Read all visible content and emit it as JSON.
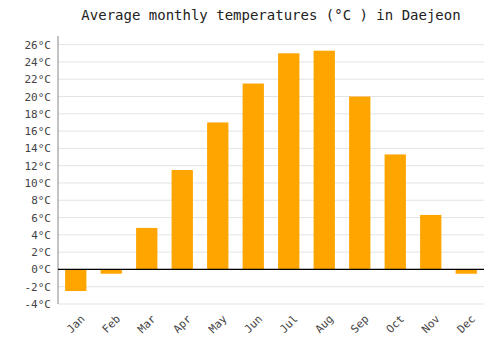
{
  "chart_data": {
    "type": "bar",
    "title": "Average monthly temperatures (°C ) in Daejeon",
    "categories": [
      "Jan",
      "Feb",
      "Mar",
      "Apr",
      "May",
      "Jun",
      "Jul",
      "Aug",
      "Sep",
      "Oct",
      "Nov",
      "Dec"
    ],
    "values": [
      -2.5,
      -0.5,
      4.8,
      11.5,
      17.0,
      21.5,
      25.0,
      25.3,
      20.0,
      13.3,
      6.3,
      -0.5
    ],
    "color": "#FFA500",
    "ylim": [
      -4,
      27
    ],
    "yticks": [
      {
        "value": -4,
        "label": "-4°C"
      },
      {
        "value": -2,
        "label": "-2°C"
      },
      {
        "value": 0,
        "label": "0°C"
      },
      {
        "value": 2,
        "label": "2°C"
      },
      {
        "value": 4,
        "label": "4°C"
      },
      {
        "value": 6,
        "label": "6°C"
      },
      {
        "value": 8,
        "label": "8°C"
      },
      {
        "value": 10,
        "label": "10°C"
      },
      {
        "value": 12,
        "label": "12°C"
      },
      {
        "value": 14,
        "label": "14°C"
      },
      {
        "value": 16,
        "label": "16°C"
      },
      {
        "value": 18,
        "label": "18°C"
      },
      {
        "value": 20,
        "label": "20°C"
      },
      {
        "value": 22,
        "label": "22°C"
      },
      {
        "value": 24,
        "label": "24°C"
      },
      {
        "value": 26,
        "label": "26°C"
      }
    ],
    "grid": true
  }
}
